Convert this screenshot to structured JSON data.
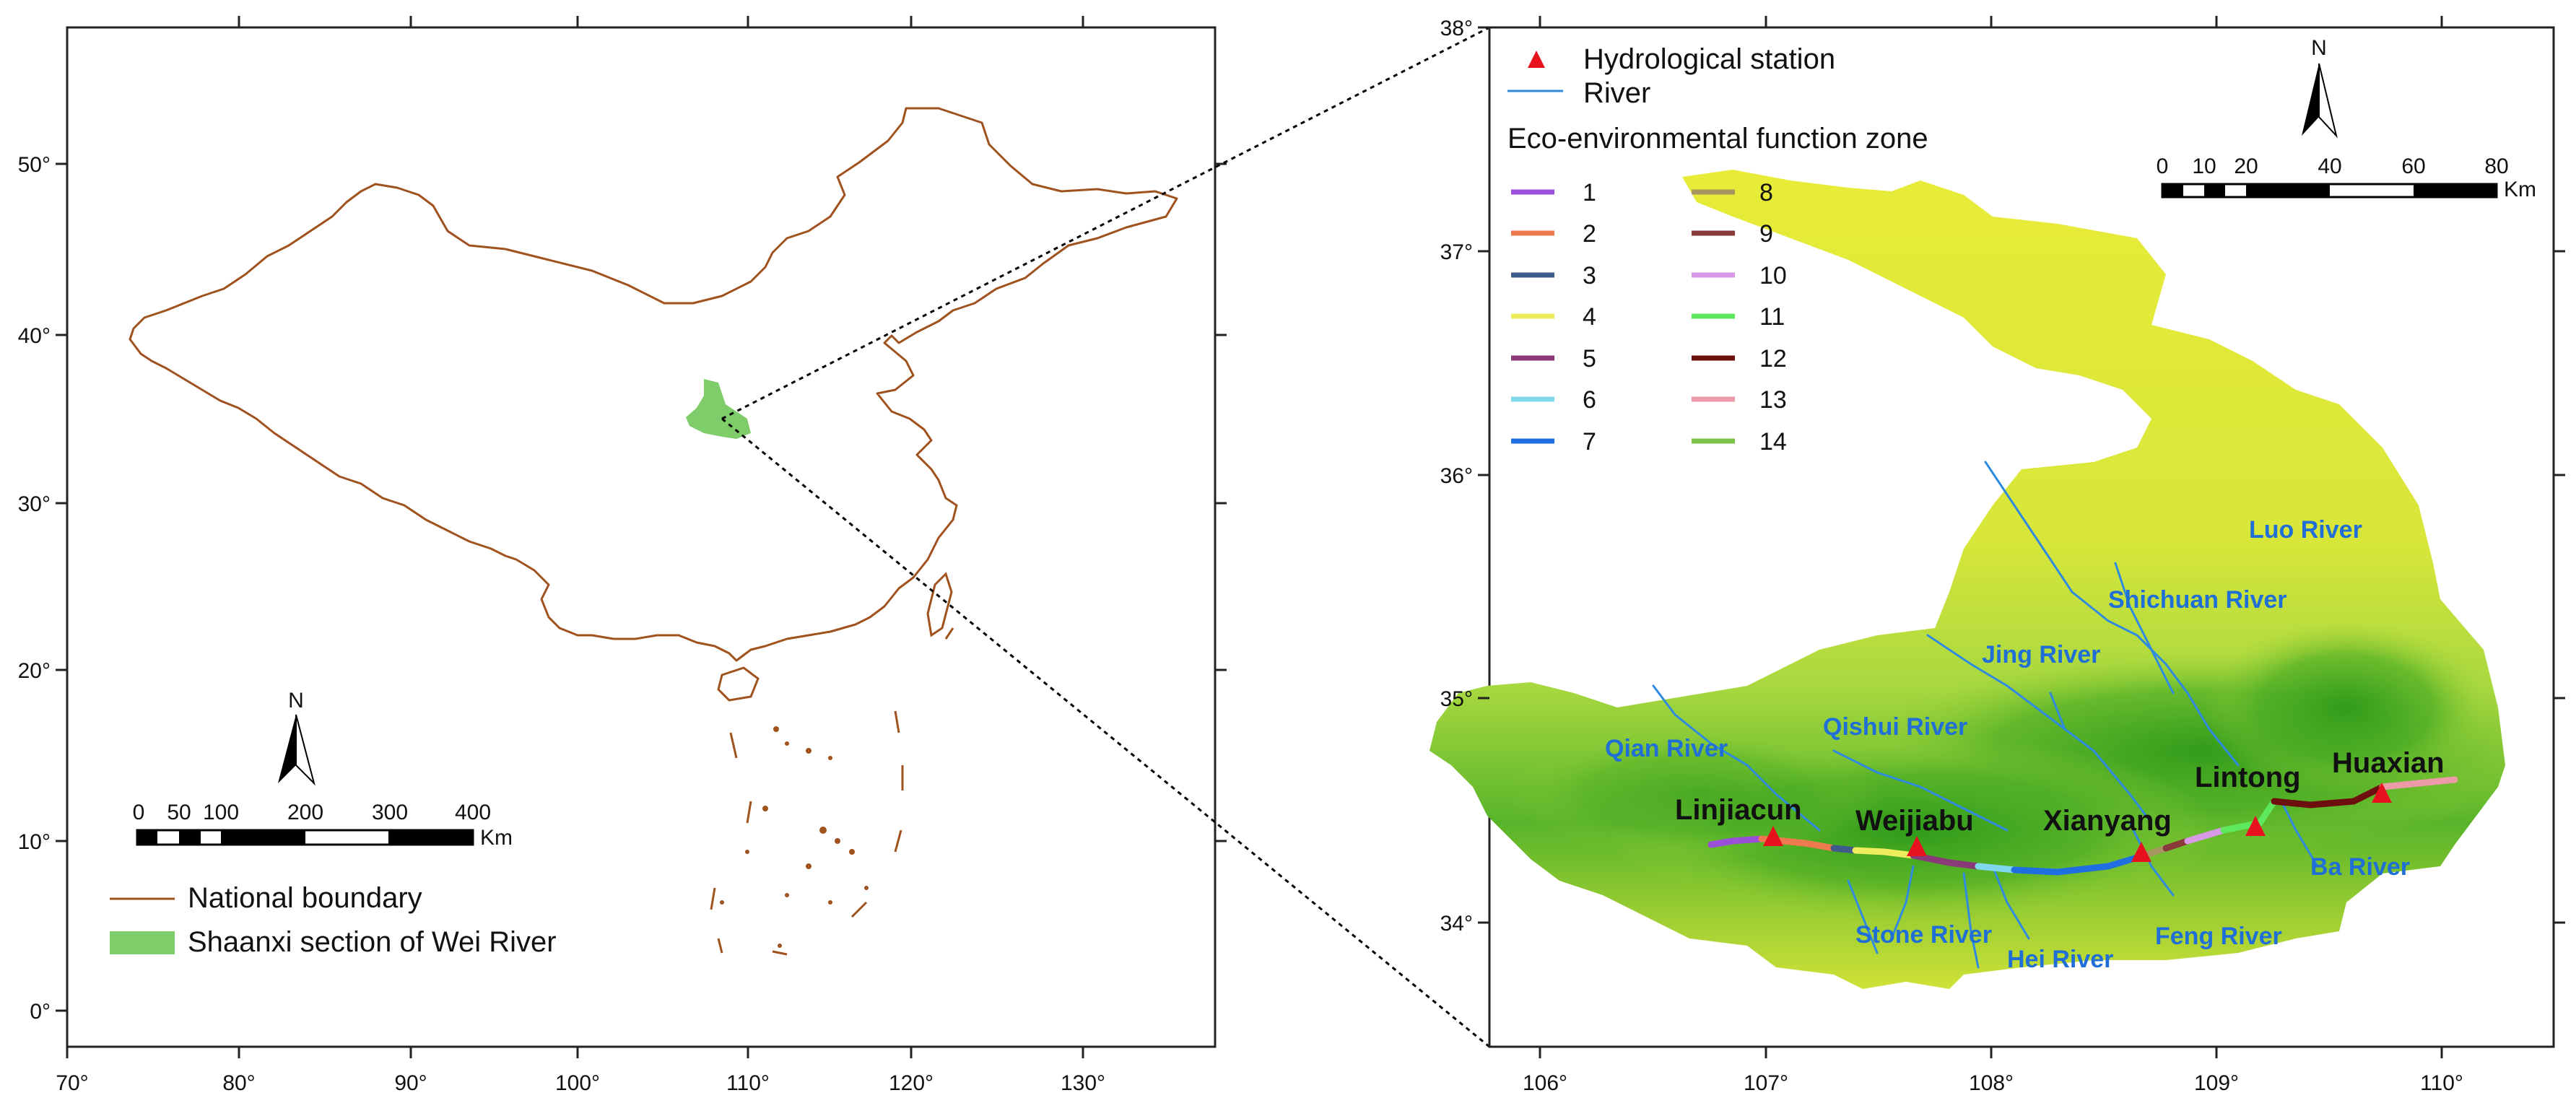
{
  "left_map": {
    "x_ticks": [
      "70°",
      "80°",
      "90°",
      "100°",
      "110°",
      "120°",
      "130°"
    ],
    "y_ticks": [
      "0°",
      "10°",
      "20°",
      "30°",
      "40°",
      "50°"
    ],
    "scale_bar": {
      "labels": [
        "0",
        "50",
        "100",
        "200",
        "300",
        "400"
      ],
      "unit": "Km"
    },
    "north_label": "N",
    "legend": [
      {
        "label": "National boundary",
        "color": "#a0521e"
      },
      {
        "label": "Shaanxi section of Wei River",
        "color": "#7fcc6a"
      }
    ]
  },
  "right_map": {
    "x_ticks": [
      "106°",
      "107°",
      "108°",
      "109°",
      "110°"
    ],
    "y_ticks": [
      "34°",
      "35°",
      "36°",
      "37°",
      "38°"
    ],
    "scale_bar": {
      "labels": [
        "0",
        "10",
        "20",
        "40",
        "60",
        "80"
      ],
      "unit": "Km"
    },
    "north_label": "N",
    "legend": {
      "station_label": "Hydrological station",
      "river_label": "River",
      "zone_title": "Eco-environmental function zone",
      "zones": [
        {
          "label": "1",
          "color": "#9b4fd8"
        },
        {
          "label": "2",
          "color": "#f07a50"
        },
        {
          "label": "3",
          "color": "#3f5b8a"
        },
        {
          "label": "4",
          "color": "#ecec5c"
        },
        {
          "label": "5",
          "color": "#8a3a78"
        },
        {
          "label": "6",
          "color": "#7fd8ec"
        },
        {
          "label": "7",
          "color": "#1f6fe0"
        },
        {
          "label": "8",
          "color": "#a89560"
        },
        {
          "label": "9",
          "color": "#8b3a3a"
        },
        {
          "label": "10",
          "color": "#d89ae6"
        },
        {
          "label": "11",
          "color": "#5ee85e"
        },
        {
          "label": "12",
          "color": "#6e0f0f"
        },
        {
          "label": "13",
          "color": "#ec9aa8"
        },
        {
          "label": "14",
          "color": "#7cc448"
        }
      ]
    },
    "stations": [
      "Linjiacun",
      "Weijiabu",
      "Xianyang",
      "Lintong",
      "Huaxian"
    ],
    "rivers": [
      "Luo River",
      "Shichuan River",
      "Jing River",
      "Qishui River",
      "Qian River",
      "Stone River",
      "Hei River",
      "Feng River",
      "Ba River"
    ]
  },
  "colors": {
    "station": "#e8121e",
    "river": "#2f8ae0",
    "boundary": "#a0521e",
    "shaanxi": "#7fcc6a"
  }
}
